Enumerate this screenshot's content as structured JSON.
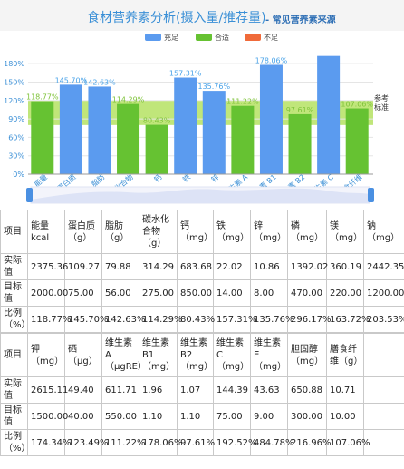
{
  "title": {
    "main": "食材营养素分析(摄入量/推荐量)",
    "sub": "- 常见营养素来源"
  },
  "legend": [
    {
      "label": "充足",
      "color": "#5b9bef"
    },
    {
      "label": "合适",
      "color": "#66c232"
    },
    {
      "label": "不足",
      "color": "#f06a3a"
    }
  ],
  "reference_label": "参考标准",
  "chart_data": {
    "type": "bar",
    "categories": [
      "能量",
      "蛋白质",
      "脂肪",
      "碳水化合物",
      "钙",
      "铁",
      "锌",
      "维生素 A",
      "维生素 B1",
      "维生素 B2",
      "维生素 C",
      "膳食纤维"
    ],
    "values": [
      118.77,
      145.7,
      142.63,
      114.29,
      80.43,
      157.31,
      135.76,
      111.22,
      178.06,
      97.61,
      192.52,
      107.06
    ],
    "value_labels": [
      "118.77%",
      "145.70%",
      "142.63%",
      "114.29%",
      "80.43%",
      "157.31%",
      "135.76%",
      "111.22%",
      "178.06%",
      "97.61%",
      "",
      "107.06%"
    ],
    "bar_colors": [
      "#66c232",
      "#5b9bef",
      "#5b9bef",
      "#66c232",
      "#66c232",
      "#5b9bef",
      "#5b9bef",
      "#66c232",
      "#5b9bef",
      "#66c232",
      "#5b9bef",
      "#66c232"
    ],
    "yticks": [
      "0%",
      "30%",
      "60%",
      "90%",
      "120%",
      "150%",
      "180%"
    ],
    "ylim": [
      0,
      195
    ],
    "reference_band": [
      80,
      120
    ],
    "grid": true
  },
  "table1": {
    "row_labels": [
      "项目",
      "实际值",
      "目标值",
      "比例（%）"
    ],
    "headers": [
      "能量kcal",
      "蛋白质（g）",
      "脂肪（g）",
      "碳水化合物（g）",
      "钙（mg）",
      "铁（mg）",
      "锌（mg）",
      "磷（mg）",
      "镁（mg）",
      "钠（mg）"
    ],
    "actual": [
      "2375.36",
      "109.27",
      "79.88",
      "314.29",
      "683.68",
      "22.02",
      "10.86",
      "1392.02",
      "360.19",
      "2442.35"
    ],
    "target": [
      "2000.00",
      "75.00",
      "56.00",
      "275.00",
      "850.00",
      "14.00",
      "8.00",
      "470.00",
      "220.00",
      "1200.00"
    ],
    "ratio": [
      "118.77%",
      "145.70%",
      "142.63%",
      "114.29%",
      "80.43%",
      "157.31%",
      "135.76%",
      "296.17%",
      "163.72%",
      "203.53%"
    ]
  },
  "table2": {
    "row_labels": [
      "项目",
      "实际值",
      "目标值",
      "比例（%）"
    ],
    "headers": [
      "钾（mg）",
      "硒（μg）",
      "维生素A（μgRE）",
      "维生素B1（mg）",
      "维生素B2（mg）",
      "维生素C（mg）",
      "维生素E（mg）",
      "胆固醇（mg）",
      "膳食纤维（g）",
      ""
    ],
    "actual": [
      "2615.11",
      "49.40",
      "611.71",
      "1.96",
      "1.07",
      "144.39",
      "43.63",
      "650.88",
      "10.71",
      ""
    ],
    "target": [
      "1500.00",
      "40.00",
      "550.00",
      "1.10",
      "1.10",
      "75.00",
      "9.00",
      "300.00",
      "10.00",
      ""
    ],
    "ratio": [
      "174.34%",
      "123.49%",
      "111.22%",
      "178.06%",
      "97.61%",
      "192.52%",
      "484.78%",
      "216.96%",
      "107.06%",
      ""
    ]
  }
}
